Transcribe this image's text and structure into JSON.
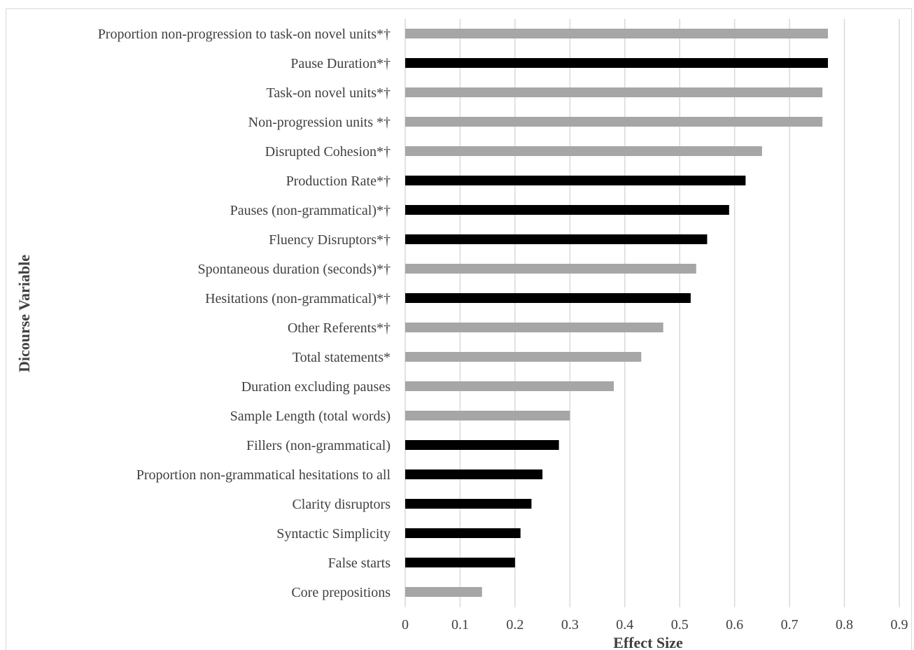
{
  "chart_data": {
    "type": "bar",
    "orientation": "horizontal",
    "xlabel": "Effect Size",
    "ylabel": "Dicourse Variable",
    "xlim": [
      0,
      0.9
    ],
    "xticks": [
      "0",
      "0.1",
      "0.2",
      "0.3",
      "0.4",
      "0.5",
      "0.6",
      "0.7",
      "0.8",
      "0.9"
    ],
    "grid": "vertical",
    "legend": "none",
    "colors": {
      "gray": "#a6a6a6",
      "black": "#000000"
    },
    "categories": [
      "Proportion non-progression to task-on novel units*†",
      "Pause Duration*†",
      "Task-on novel units*†",
      "Non-progression units *†",
      "Disrupted Cohesion*†",
      "Production Rate*†",
      "Pauses (non-grammatical)*†",
      "Fluency Disruptors*†",
      "Spontaneous duration (seconds)*†",
      "Hesitations (non-grammatical)*†",
      "Other Referents*†",
      "Total statements*",
      "Duration excluding pauses",
      "Sample Length (total words)",
      "Fillers (non-grammatical)",
      "Proportion non-grammatical hesitations to all",
      "Clarity disruptors",
      "Syntactic Simplicity",
      "False starts",
      "Core prepositions"
    ],
    "values": [
      0.77,
      0.77,
      0.76,
      0.76,
      0.65,
      0.62,
      0.59,
      0.55,
      0.53,
      0.52,
      0.47,
      0.43,
      0.38,
      0.3,
      0.28,
      0.25,
      0.23,
      0.21,
      0.2,
      0.14
    ],
    "bar_colors": [
      "gray",
      "black",
      "gray",
      "gray",
      "gray",
      "black",
      "black",
      "black",
      "gray",
      "black",
      "gray",
      "gray",
      "gray",
      "gray",
      "black",
      "black",
      "black",
      "black",
      "black",
      "gray"
    ]
  }
}
